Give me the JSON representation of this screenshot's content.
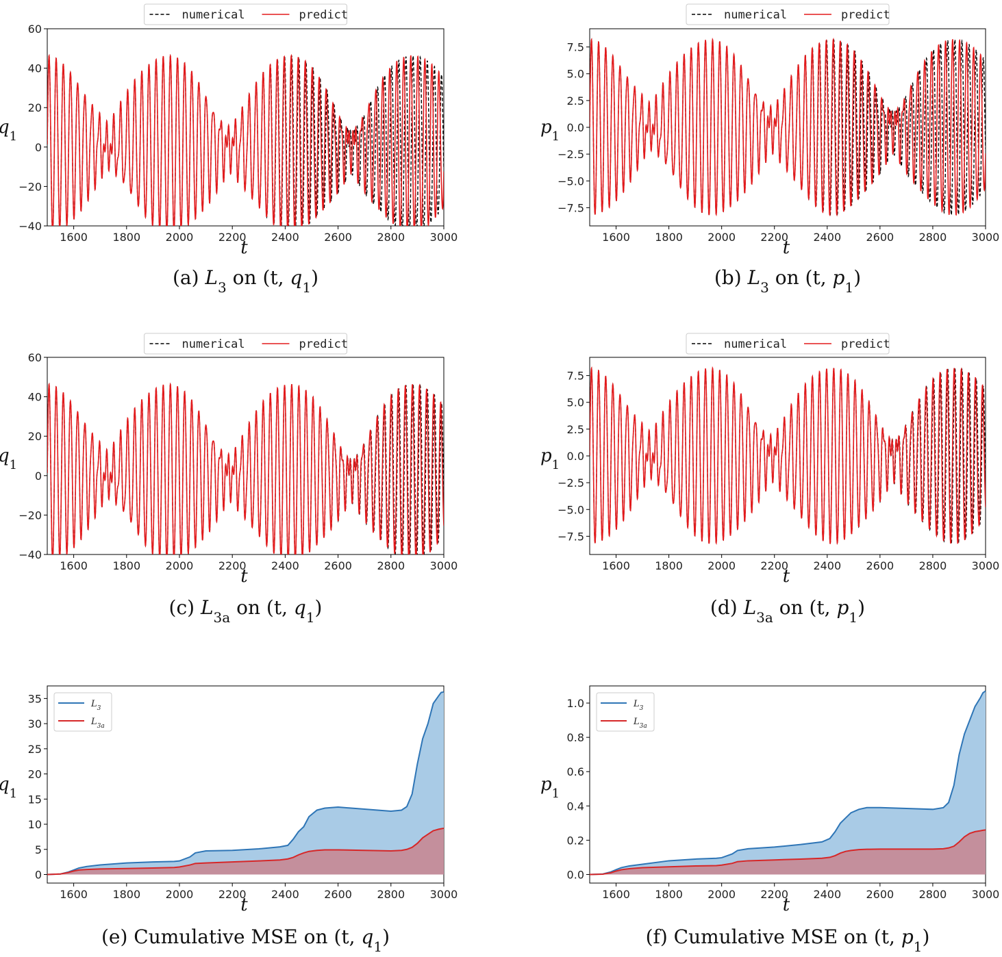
{
  "colors": {
    "numerical": "#000000",
    "predict": "#e41a1c",
    "L3_line": "#2e75b6",
    "L3_fill": "#a9cbe6",
    "L3a_line": "#d62728",
    "L3a_fill": "#c48f9c"
  },
  "chart_data": [
    {
      "id": "a",
      "type": "line",
      "caption": "(a) L3 on (t, q1)",
      "xlabel": "t",
      "ylabel": "q1",
      "xlim": [
        1500,
        3000
      ],
      "ylim": [
        -40,
        60
      ],
      "xticks": [
        1600,
        1800,
        2000,
        2200,
        2400,
        2600,
        2800,
        3000
      ],
      "yticks": [
        -40,
        -20,
        0,
        20,
        40,
        60
      ],
      "ytick_labels": [
        "−40",
        "−20",
        "0",
        "20",
        "40",
        "60"
      ],
      "legend": [
        "numerical",
        "predict"
      ],
      "signal": {
        "amp": 45,
        "offset": 9,
        "period": 27,
        "beat": 460,
        "phase_drift": 0,
        "wobble": 0.18
      },
      "predict_drift": {
        "start": 2300,
        "rate": 0.0035
      }
    },
    {
      "id": "b",
      "type": "line",
      "caption": "(b) L3 on (t, p1)",
      "xlabel": "t",
      "ylabel": "p1",
      "xlim": [
        1500,
        3000
      ],
      "ylim": [
        -9.2,
        9.2
      ],
      "xticks": [
        1600,
        1800,
        2000,
        2200,
        2400,
        2600,
        2800,
        3000
      ],
      "yticks": [
        -7.5,
        -5.0,
        -2.5,
        0.0,
        2.5,
        5.0,
        7.5
      ],
      "ytick_labels": [
        "−7.5",
        "−5.0",
        "−2.5",
        "0.0",
        "2.5",
        "5.0",
        "7.5"
      ],
      "legend": [
        "numerical",
        "predict"
      ],
      "signal": {
        "amp": 8.2,
        "offset": 0,
        "period": 27,
        "beat": 460,
        "phase_drift": 0,
        "wobble": 0.18
      },
      "predict_drift": {
        "start": 2300,
        "rate": 0.0035
      }
    },
    {
      "id": "c",
      "type": "line",
      "caption": "(c) L3a on (t, q1)",
      "xlabel": "t",
      "ylabel": "q1",
      "xlim": [
        1500,
        3000
      ],
      "ylim": [
        -40,
        60
      ],
      "xticks": [
        1600,
        1800,
        2000,
        2200,
        2400,
        2600,
        2800,
        3000
      ],
      "yticks": [
        -40,
        -20,
        0,
        20,
        40,
        60
      ],
      "ytick_labels": [
        "−40",
        "−20",
        "0",
        "20",
        "40",
        "60"
      ],
      "legend": [
        "numerical",
        "predict"
      ],
      "signal": {
        "amp": 45,
        "offset": 9,
        "period": 27,
        "beat": 460,
        "phase_drift": 0,
        "wobble": 0.18
      },
      "predict_drift": {
        "start": 2500,
        "rate": 0.0015
      }
    },
    {
      "id": "d",
      "type": "line",
      "caption": "(d) L3a on (t, p1)",
      "xlabel": "t",
      "ylabel": "p1",
      "xlim": [
        1500,
        3000
      ],
      "ylim": [
        -9.2,
        9.2
      ],
      "xticks": [
        1600,
        1800,
        2000,
        2200,
        2400,
        2600,
        2800,
        3000
      ],
      "yticks": [
        -7.5,
        -5.0,
        -2.5,
        0.0,
        2.5,
        5.0,
        7.5
      ],
      "ytick_labels": [
        "−7.5",
        "−5.0",
        "−2.5",
        "0.0",
        "2.5",
        "5.0",
        "7.5"
      ],
      "legend": [
        "numerical",
        "predict"
      ],
      "signal": {
        "amp": 8.2,
        "offset": 0,
        "period": 27,
        "beat": 460,
        "phase_drift": 0,
        "wobble": 0.18
      },
      "predict_drift": {
        "start": 2500,
        "rate": 0.0015
      }
    },
    {
      "id": "e",
      "type": "area",
      "caption": "(e) Cumulative MSE on (t, q1)",
      "xlabel": "t",
      "ylabel": "q1",
      "xlim": [
        1500,
        3000
      ],
      "ylim": [
        -1.7,
        37.5
      ],
      "xticks": [
        1600,
        1800,
        2000,
        2200,
        2400,
        2600,
        2800,
        3000
      ],
      "yticks": [
        0,
        5,
        10,
        15,
        20,
        25,
        30,
        35
      ],
      "ytick_labels": [
        "0",
        "5",
        "10",
        "15",
        "20",
        "25",
        "30",
        "35"
      ],
      "legend": [
        "L3",
        "L3a"
      ],
      "x": [
        1500,
        1550,
        1580,
        1600,
        1620,
        1650,
        1700,
        1800,
        1900,
        1980,
        2000,
        2040,
        2060,
        2100,
        2200,
        2300,
        2380,
        2410,
        2430,
        2450,
        2470,
        2490,
        2520,
        2550,
        2600,
        2700,
        2800,
        2840,
        2860,
        2880,
        2900,
        2920,
        2940,
        2960,
        2980,
        2990,
        3000
      ],
      "series": [
        {
          "name": "L3",
          "values": [
            0,
            0.1,
            0.5,
            0.9,
            1.3,
            1.6,
            1.9,
            2.3,
            2.5,
            2.6,
            2.7,
            3.5,
            4.3,
            4.7,
            4.8,
            5.1,
            5.5,
            5.8,
            7.0,
            8.5,
            9.5,
            11.5,
            12.8,
            13.2,
            13.4,
            13.0,
            12.6,
            12.8,
            13.5,
            16.0,
            22.0,
            27.0,
            30.0,
            34.0,
            35.5,
            36.2,
            36.3
          ]
        },
        {
          "name": "L3a",
          "values": [
            0,
            0.1,
            0.4,
            0.7,
            0.9,
            1.0,
            1.1,
            1.2,
            1.3,
            1.4,
            1.5,
            1.9,
            2.2,
            2.3,
            2.5,
            2.7,
            2.9,
            3.1,
            3.4,
            3.9,
            4.3,
            4.6,
            4.8,
            4.9,
            4.9,
            4.8,
            4.7,
            4.8,
            5.0,
            5.4,
            6.2,
            7.3,
            8.0,
            8.7,
            9.0,
            9.1,
            9.2
          ]
        }
      ]
    },
    {
      "id": "f",
      "type": "area",
      "caption": "(f) Cumulative MSE on (t, p1)",
      "xlabel": "t",
      "ylabel": "p1",
      "xlim": [
        1500,
        3000
      ],
      "ylim": [
        -0.05,
        1.1
      ],
      "xticks": [
        1600,
        1800,
        2000,
        2200,
        2400,
        2600,
        2800,
        3000
      ],
      "yticks": [
        0.0,
        0.2,
        0.4,
        0.6,
        0.8,
        1.0
      ],
      "ytick_labels": [
        "0.0",
        "0.2",
        "0.4",
        "0.6",
        "0.8",
        "1.0"
      ],
      "legend": [
        "L3",
        "L3a"
      ],
      "x": [
        1500,
        1550,
        1580,
        1600,
        1620,
        1650,
        1700,
        1800,
        1900,
        1980,
        2000,
        2040,
        2060,
        2100,
        2200,
        2300,
        2380,
        2410,
        2430,
        2450,
        2470,
        2490,
        2520,
        2550,
        2600,
        2700,
        2800,
        2840,
        2860,
        2880,
        2900,
        2920,
        2940,
        2960,
        2980,
        2990,
        3000
      ],
      "series": [
        {
          "name": "L3",
          "values": [
            0,
            0.003,
            0.015,
            0.028,
            0.04,
            0.05,
            0.06,
            0.08,
            0.09,
            0.095,
            0.098,
            0.12,
            0.14,
            0.15,
            0.16,
            0.175,
            0.19,
            0.21,
            0.25,
            0.3,
            0.33,
            0.36,
            0.38,
            0.39,
            0.39,
            0.385,
            0.38,
            0.39,
            0.42,
            0.52,
            0.7,
            0.82,
            0.9,
            0.98,
            1.03,
            1.06,
            1.07
          ]
        },
        {
          "name": "L3a",
          "values": [
            0,
            0.002,
            0.01,
            0.02,
            0.028,
            0.034,
            0.04,
            0.045,
            0.05,
            0.052,
            0.055,
            0.065,
            0.075,
            0.08,
            0.085,
            0.09,
            0.095,
            0.1,
            0.11,
            0.125,
            0.135,
            0.14,
            0.145,
            0.147,
            0.148,
            0.148,
            0.148,
            0.15,
            0.155,
            0.165,
            0.19,
            0.22,
            0.24,
            0.25,
            0.255,
            0.258,
            0.26
          ]
        }
      ]
    }
  ]
}
